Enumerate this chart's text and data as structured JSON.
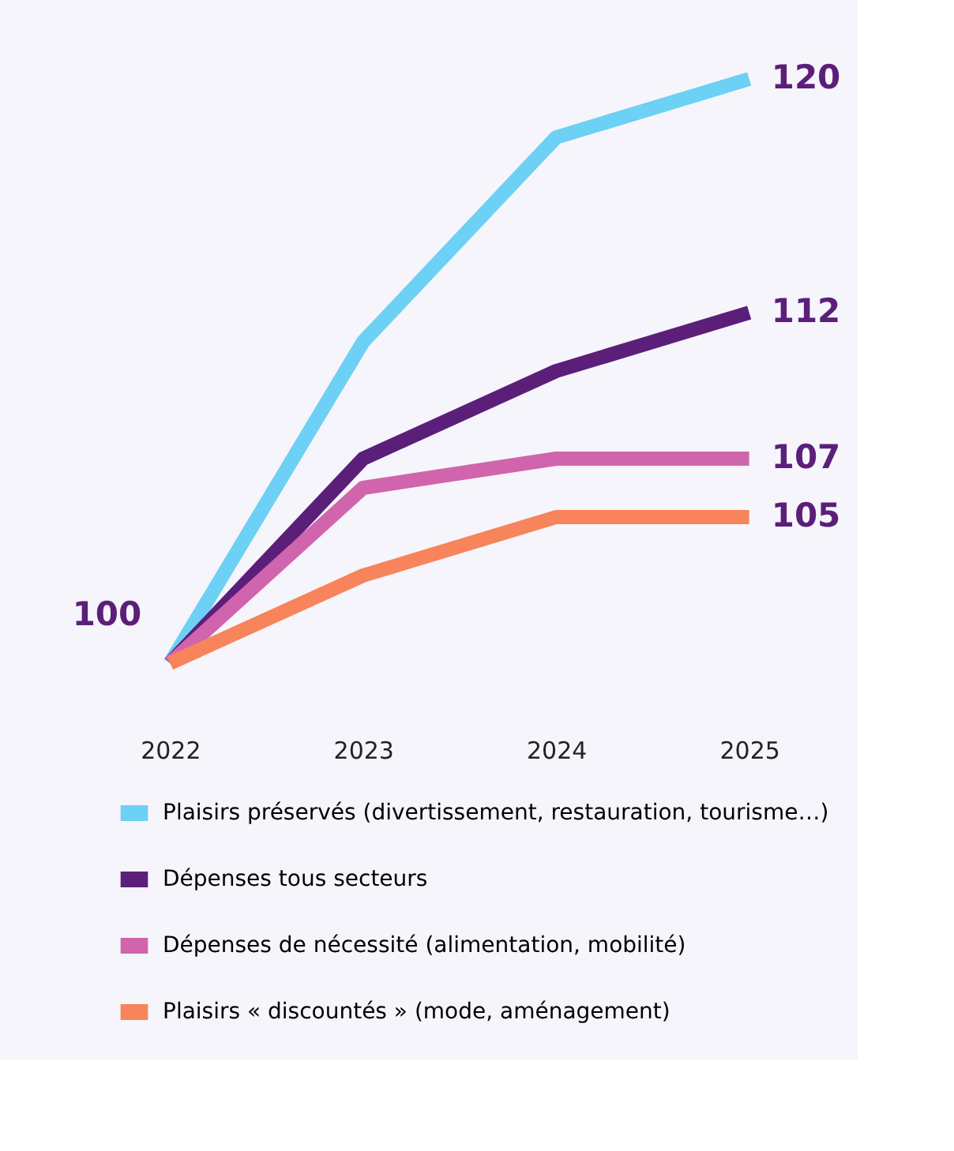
{
  "chart_data": {
    "type": "line",
    "categories": [
      "2022",
      "2023",
      "2024",
      "2025"
    ],
    "tick_labels": "x",
    "grid": false,
    "legend": "bottom",
    "marker": "none",
    "line_style": "solid",
    "series": [
      {
        "name": "Plaisirs préservés (divertissement, restauration, tourisme…)",
        "color": "#6dd0f5",
        "values": [
          100,
          111,
          118,
          120
        ],
        "value_labels": [
          null,
          null,
          null,
          "120"
        ]
      },
      {
        "name": "Dépenses tous secteurs",
        "color": "#5b1f7a",
        "values": [
          100,
          107,
          110,
          112
        ],
        "value_labels": [
          "100",
          null,
          null,
          "112"
        ]
      },
      {
        "name": "Dépenses de nécessité (alimentation, mobilité)",
        "color": "#d065ad",
        "values": [
          100,
          106,
          107,
          107
        ],
        "value_labels": [
          null,
          null,
          null,
          "107"
        ]
      },
      {
        "name": "Plaisirs « discountés » (mode, aménagement)",
        "color": "#f7845a",
        "values": [
          100,
          103,
          105,
          105
        ],
        "value_labels": [
          null,
          null,
          null,
          "105"
        ]
      }
    ]
  }
}
